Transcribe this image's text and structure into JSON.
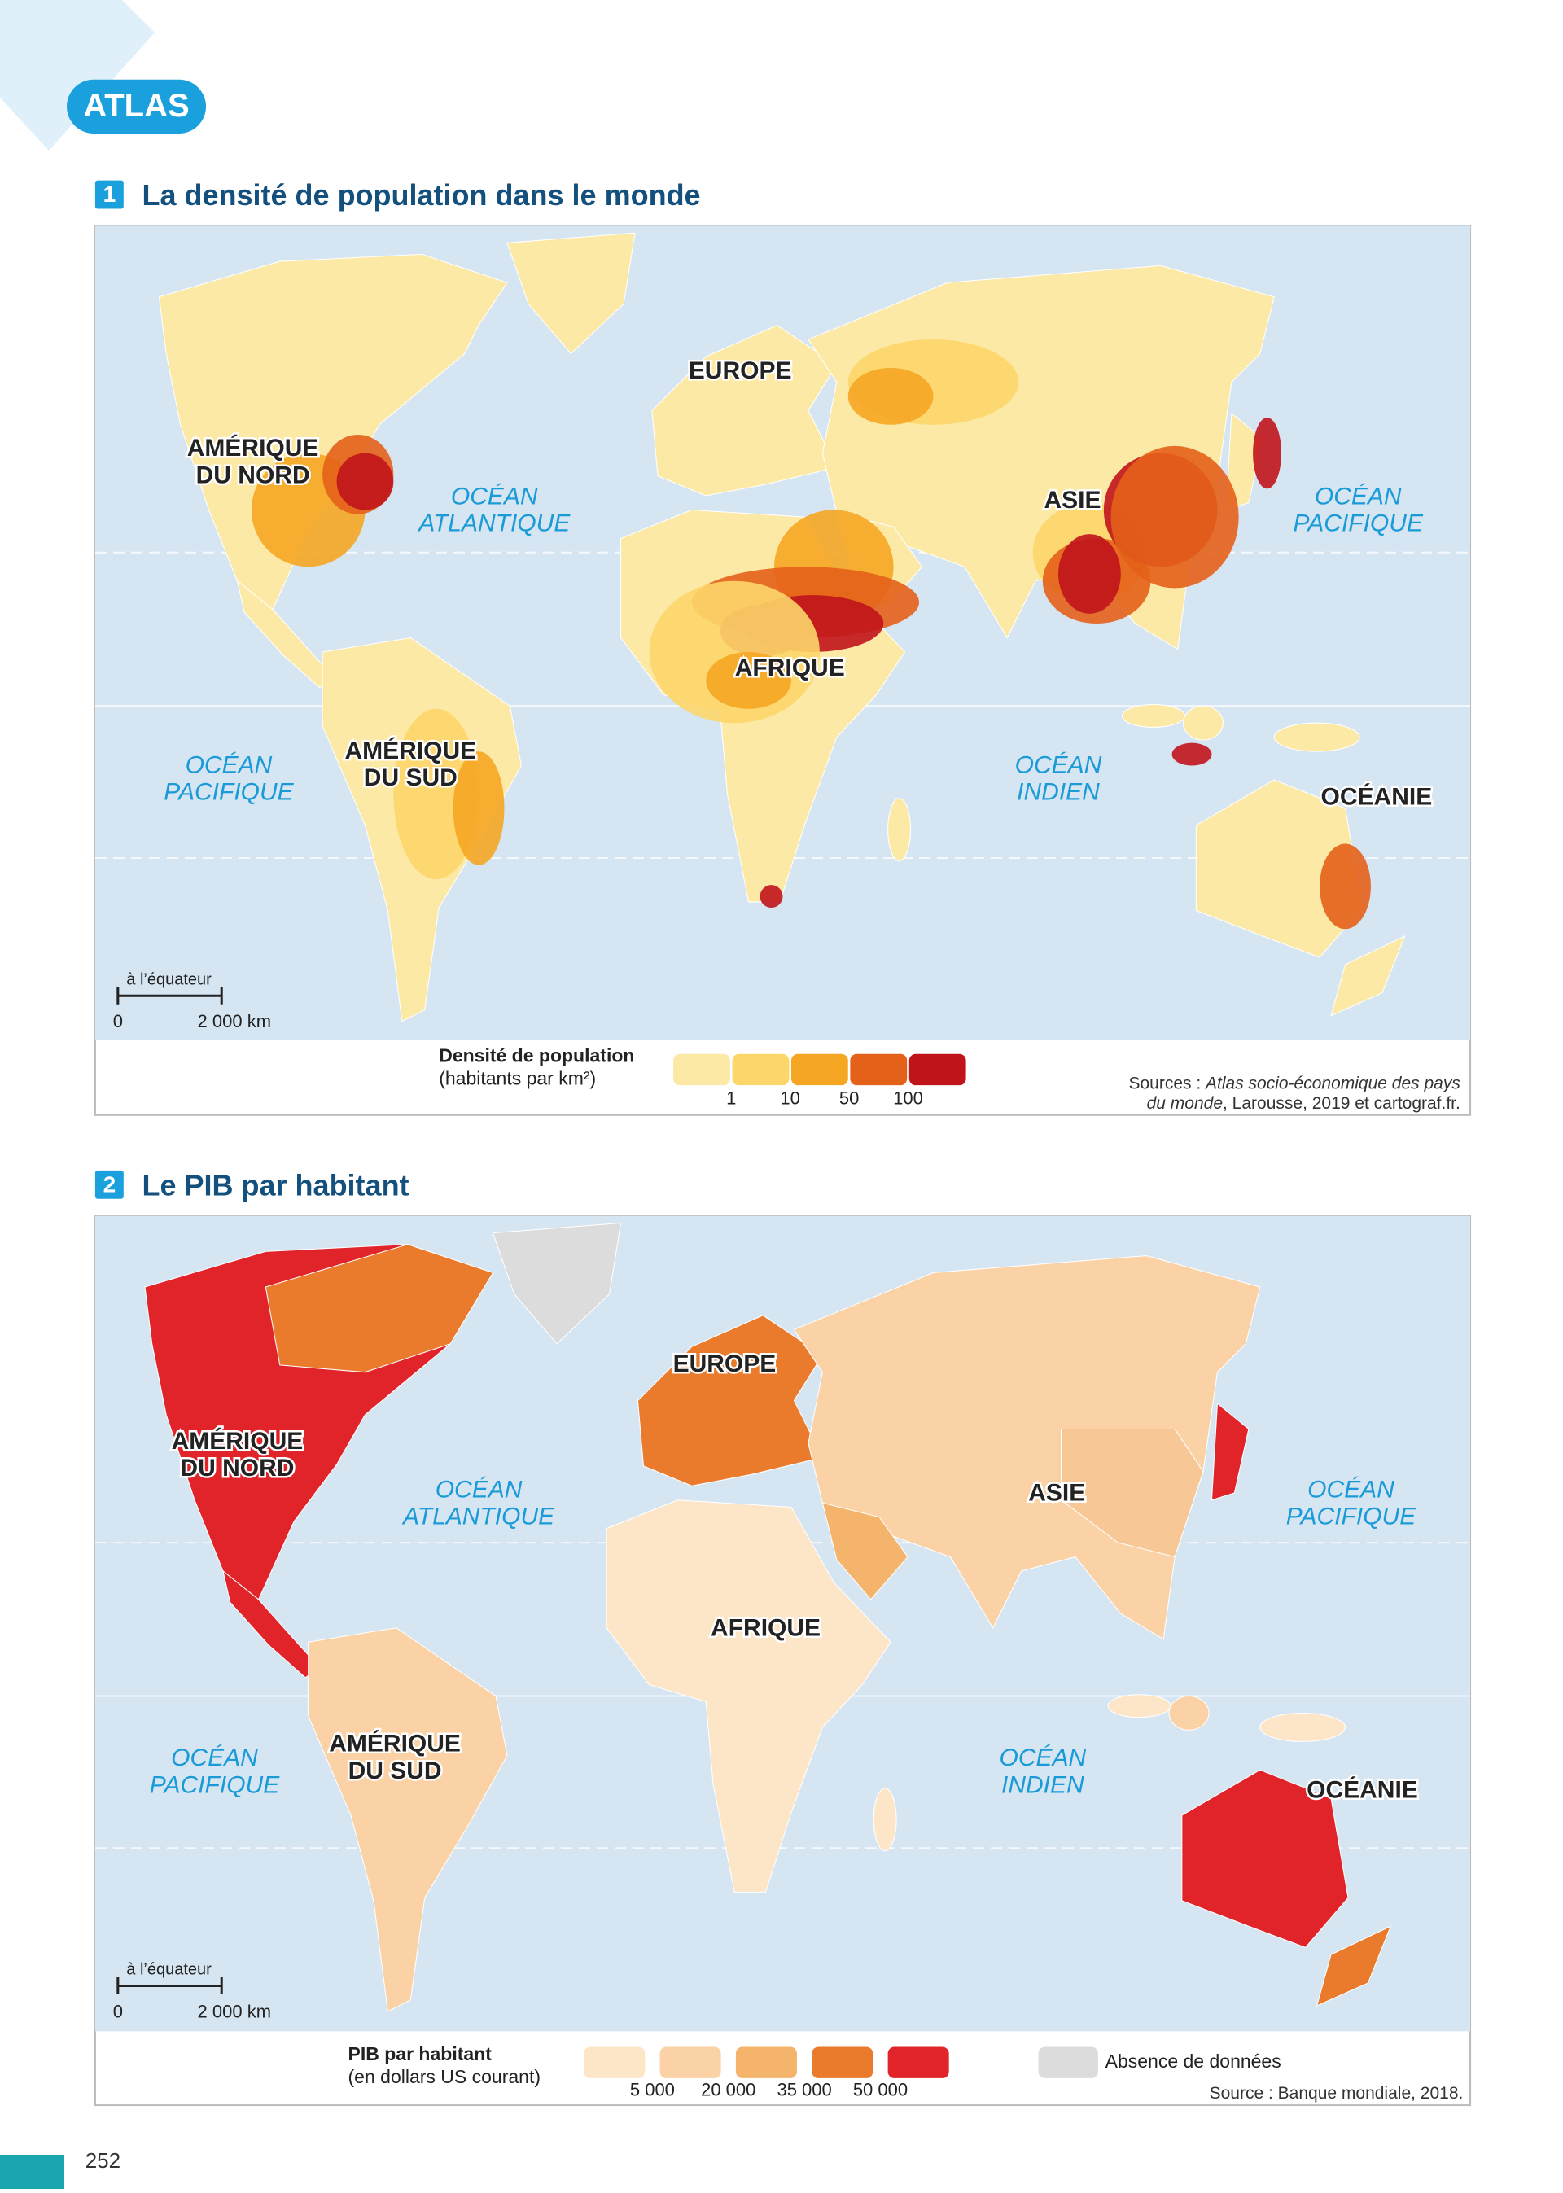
{
  "header": {
    "tag": "ATLAS"
  },
  "maps": [
    {
      "number": "1",
      "title": "La densité de population dans le monde",
      "labels": [
        {
          "lines": [
            "EUROPE"
          ]
        },
        {
          "lines": [
            "AMÉRIQUE",
            "DU NORD"
          ]
        },
        {
          "lines": [
            "OCÉAN",
            "ATLANTIQUE"
          ]
        },
        {
          "lines": [
            "ASIE"
          ]
        },
        {
          "lines": [
            "OCÉAN",
            "PACIFIQUE"
          ]
        },
        {
          "lines": [
            "AFRIQUE"
          ]
        },
        {
          "lines": [
            "OCÉAN",
            "PACIFIQUE"
          ]
        },
        {
          "lines": [
            "AMÉRIQUE",
            "DU SUD"
          ]
        },
        {
          "lines": [
            "OCÉAN",
            "INDIEN"
          ]
        },
        {
          "lines": [
            "OCÉANIE"
          ]
        }
      ],
      "scale": {
        "note": "à l’équateur",
        "start": "0",
        "end": "2 000 km"
      },
      "legend": {
        "title": "Densité de population",
        "subtitle": "(habitants par km²)",
        "colors": [
          "#fde9a6",
          "#fdd66a",
          "#f5a623",
          "#e4611a",
          "#c0141b"
        ],
        "ticks": [
          "1",
          "10",
          "50",
          "100"
        ]
      },
      "source": {
        "lines": [
          [
            "Sources : ",
            "Atlas socio-économique des pays"
          ],
          [
            "du monde",
            ", Larousse, 2019 et cartograf.fr."
          ]
        ]
      }
    },
    {
      "number": "2",
      "title": "Le PIB par habitant",
      "labels": [
        {
          "lines": [
            "EUROPE"
          ]
        },
        {
          "lines": [
            "AMÉRIQUE",
            "DU NORD"
          ]
        },
        {
          "lines": [
            "OCÉAN",
            "ATLANTIQUE"
          ]
        },
        {
          "lines": [
            "ASIE"
          ]
        },
        {
          "lines": [
            "OCÉAN",
            "PACIFIQUE"
          ]
        },
        {
          "lines": [
            "AFRIQUE"
          ]
        },
        {
          "lines": [
            "OCÉAN",
            "PACIFIQUE"
          ]
        },
        {
          "lines": [
            "AMÉRIQUE",
            "DU SUD"
          ]
        },
        {
          "lines": [
            "OCÉAN",
            "INDIEN"
          ]
        },
        {
          "lines": [
            "OCÉANIE"
          ]
        }
      ],
      "scale": {
        "note": "à l’équateur",
        "start": "0",
        "end": "2 000 km"
      },
      "legend": {
        "title": "PIB par habitant",
        "subtitle": "(en dollars US courant)",
        "colors": [
          "#fde6c8",
          "#fad2a6",
          "#f5b46c",
          "#ea7a2c",
          "#e0242a"
        ],
        "ticks": [
          "5 000",
          "20 000",
          "35 000",
          "50 000"
        ],
        "no_data": {
          "color": "#dcdcdc",
          "label": "Absence de données"
        }
      },
      "source": {
        "lines": [
          [
            "Source : Banque mondiale, 2018."
          ]
        ]
      }
    }
  ],
  "page_number": "252"
}
